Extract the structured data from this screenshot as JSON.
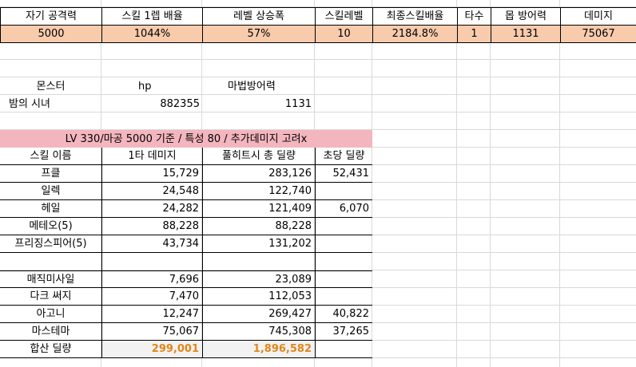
{
  "stats": {
    "headers": [
      "자기 공격력",
      "스킬 1렙 배율",
      "레벨 상승폭",
      "스킬레벨",
      "최종스킬배율",
      "타수",
      "몹 방어력",
      "데미지"
    ],
    "values": [
      "5000",
      "1044%",
      "57%",
      "10",
      "2184.8%",
      "1",
      "1131",
      "75067"
    ]
  },
  "monster": {
    "headers": [
      "몬스터",
      "hp",
      "마법방어력"
    ],
    "name": "밤의 시녀",
    "hp": "882355",
    "mdef": "1131"
  },
  "banner": "LV 330/마공 5000 기준 / 특성 80 / 추가데미지 고려x",
  "skills": {
    "headers": [
      "스킬 이름",
      "1타 데미지",
      "풀히트시 총 딜량",
      "초당 딜량"
    ],
    "group1": [
      {
        "name": "프클",
        "hit": "15,729",
        "total": "283,126",
        "dps": "52,431"
      },
      {
        "name": "일렉",
        "hit": "24,548",
        "total": "122,740",
        "dps": ""
      },
      {
        "name": "헤일",
        "hit": "24,282",
        "total": "121,409",
        "dps": "6,070"
      },
      {
        "name": "메테오(5)",
        "hit": "88,228",
        "total": "88,228",
        "dps": ""
      },
      {
        "name": "프리징스피어(5)",
        "hit": "43,734",
        "total": "131,202",
        "dps": ""
      }
    ],
    "group2": [
      {
        "name": "매직미사일",
        "hit": "7,696",
        "total": "23,089",
        "dps": ""
      },
      {
        "name": "다크 써지",
        "hit": "7,470",
        "total": "112,053",
        "dps": ""
      },
      {
        "name": "아고니",
        "hit": "12,247",
        "total": "269,427",
        "dps": "40,822"
      },
      {
        "name": "마스테마",
        "hit": "75,067",
        "total": "745,308",
        "dps": "37,265"
      }
    ],
    "total": {
      "label": "합산 딜량",
      "hit": "299,001",
      "total": "1,896,582"
    }
  }
}
